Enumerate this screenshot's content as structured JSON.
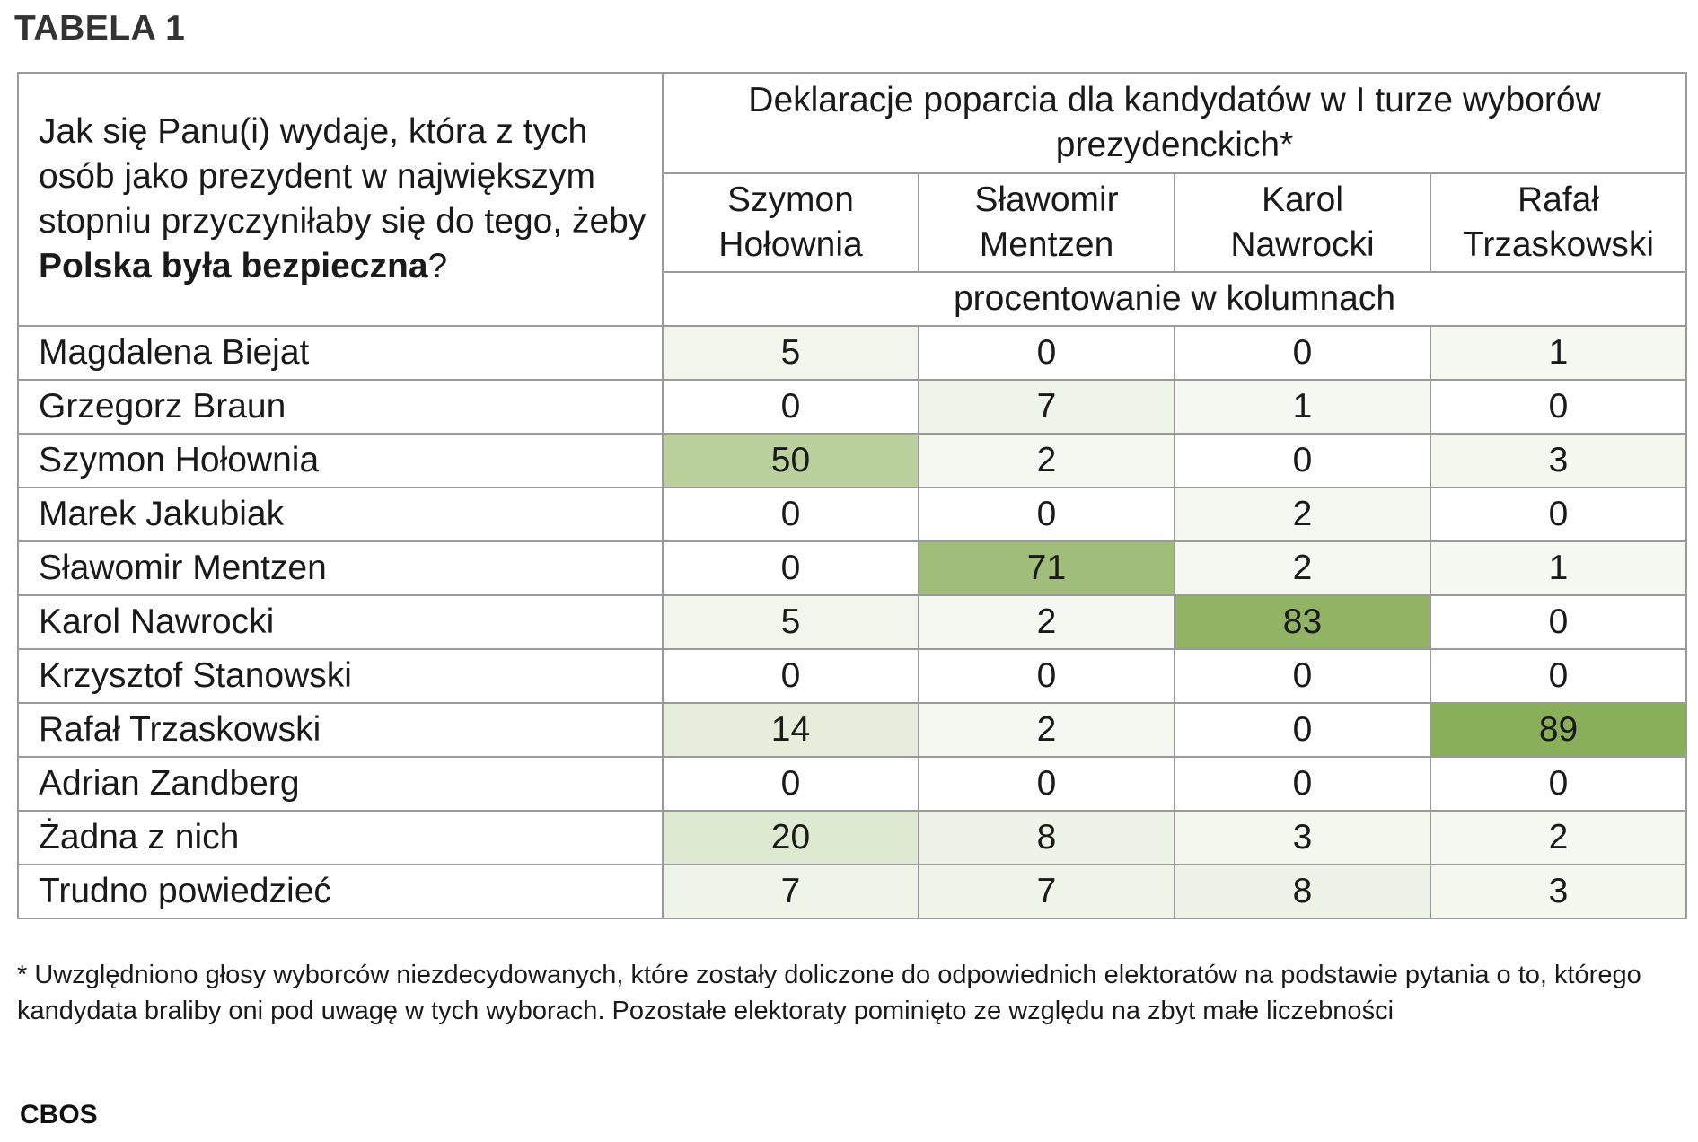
{
  "title": "TABELA 1",
  "question": {
    "prefix": "Jak się Panu(i) wydaje, która z tych osób jako prezydent w największym stopniu przyczyniłaby się do tego, żeby ",
    "bold": "Polska była bezpieczna",
    "suffix": "?"
  },
  "header": {
    "main": "Deklaracje poparcia dla kandydatów w I turze wyborów prezydenckich*",
    "unit": "procentowanie w kolumnach",
    "columns": [
      {
        "line1": "Szymon",
        "line2": "Hołownia"
      },
      {
        "line1": "Sławomir",
        "line2": "Mentzen"
      },
      {
        "line1": "Karol",
        "line2": "Nawrocki"
      },
      {
        "line1": "Rafał",
        "line2": "Trzaskowski"
      }
    ]
  },
  "rows": [
    {
      "label": "Magdalena Biejat",
      "values": [
        "5",
        "0",
        "0",
        "1"
      ]
    },
    {
      "label": "Grzegorz Braun",
      "values": [
        "0",
        "7",
        "1",
        "0"
      ]
    },
    {
      "label": "Szymon Hołownia",
      "values": [
        "50",
        "2",
        "0",
        "3"
      ]
    },
    {
      "label": "Marek Jakubiak",
      "values": [
        "0",
        "0",
        "2",
        "0"
      ]
    },
    {
      "label": "Sławomir Mentzen",
      "values": [
        "0",
        "71",
        "2",
        "1"
      ]
    },
    {
      "label": "Karol Nawrocki",
      "values": [
        "5",
        "2",
        "83",
        "0"
      ]
    },
    {
      "label": "Krzysztof Stanowski",
      "values": [
        "0",
        "0",
        "0",
        "0"
      ]
    },
    {
      "label": "Rafał Trzaskowski",
      "values": [
        "14",
        "2",
        "0",
        "89"
      ]
    },
    {
      "label": "Adrian Zandberg",
      "values": [
        "0",
        "0",
        "0",
        "0"
      ]
    },
    {
      "label": "Żadna z nich",
      "values": [
        "20",
        "8",
        "3",
        "2"
      ]
    },
    {
      "label": "Trudno powiedzieć",
      "values": [
        "7",
        "7",
        "8",
        "3"
      ]
    }
  ],
  "heat_colors": {
    "base": "#ffffff",
    "max": "#8aaf5a"
  },
  "footnote": "* Uwzględniono głosy wyborców niezdecydowanych, które zostały doliczone do odpowiednich elektoratów na podstawie pytania o to, którego kandydata braliby oni pod uwagę w tych wyborach. Pozostałe elektoraty pominięto ze względu na zbyt małe liczebności",
  "source": "CBOS"
}
